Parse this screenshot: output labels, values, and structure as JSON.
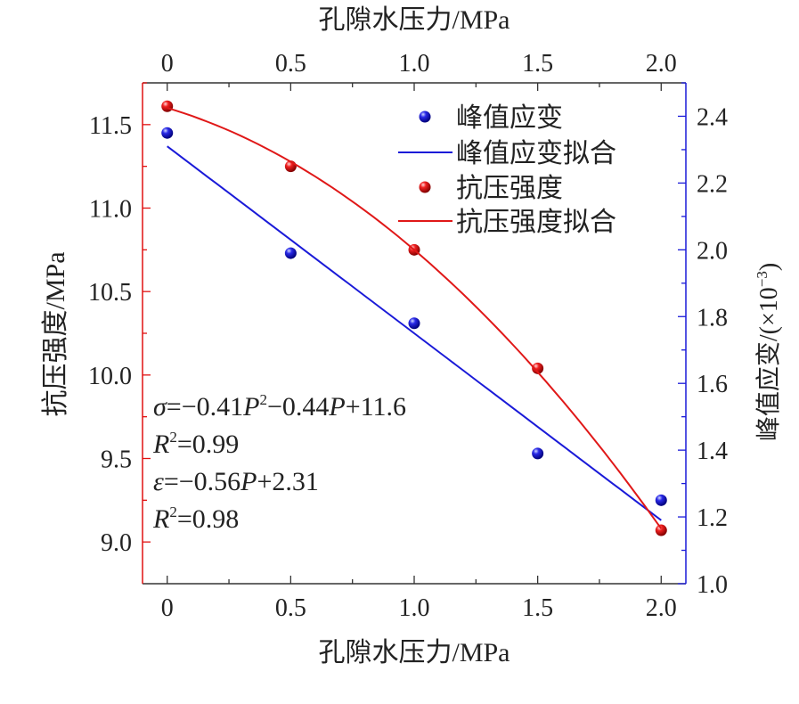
{
  "chart_data": {
    "type": "scatter",
    "title": "",
    "xlabel": "孔隙水压力/MPa",
    "xlabel_top": "孔隙水压力/MPa",
    "ylabel_left": "抗压强度/MPa",
    "ylabel_right": "峰值应变/(×10",
    "ylabel_right_exp": "−3",
    "ylabel_right_close": ")",
    "xlim": [
      -0.1,
      2.1
    ],
    "ylim_left": [
      8.75,
      11.75
    ],
    "ylim_right": [
      1.0,
      2.5
    ],
    "x_ticks": [
      "0",
      "0.5",
      "1.0",
      "1.5",
      "2.0"
    ],
    "x_tick_values": [
      0,
      0.5,
      1.0,
      1.5,
      2.0
    ],
    "y_left_ticks": [
      "9.0",
      "9.5",
      "10.0",
      "10.5",
      "11.0",
      "11.5"
    ],
    "y_left_tick_values": [
      9.0,
      9.5,
      10.0,
      10.5,
      11.0,
      11.5
    ],
    "y_right_ticks": [
      "1.0",
      "1.2",
      "1.4",
      "1.6",
      "1.8",
      "2.0",
      "2.2",
      "2.4"
    ],
    "y_right_tick_values": [
      1.0,
      1.2,
      1.4,
      1.6,
      1.8,
      2.0,
      2.2,
      2.4
    ],
    "x": [
      0,
      0.5,
      1.0,
      1.5,
      2.0
    ],
    "series": [
      {
        "name": "峰值应变",
        "axis": "right",
        "kind": "points",
        "color": "#1010d0",
        "values": [
          2.35,
          1.99,
          1.78,
          1.39,
          1.25
        ]
      },
      {
        "name": "峰值应变拟合",
        "axis": "right",
        "kind": "fit",
        "color": "#1a1ad8",
        "coeffs": [
          0,
          -0.56,
          2.31
        ]
      },
      {
        "name": "抗压强度",
        "axis": "left",
        "kind": "points",
        "color": "#e01010",
        "values": [
          11.61,
          11.25,
          10.75,
          10.04,
          9.07
        ]
      },
      {
        "name": "抗压强度拟合",
        "axis": "left",
        "kind": "fit",
        "color": "#e01818",
        "coeffs": [
          -0.41,
          -0.44,
          11.6
        ]
      }
    ],
    "legend_position": "top-right",
    "annotations": {
      "sigma_fit": {
        "sym": "σ",
        "eq": "=−0.41",
        "p1": "P",
        "sup": "2",
        "rest": "−0.44",
        "p2": "P",
        "end": "+11.6"
      },
      "sigma_r2": {
        "r": "R",
        "sup": "2",
        "val": "=0.99"
      },
      "eps_fit": {
        "sym": "ε",
        "eq": "=−0.56",
        "p": "P",
        "end": "+2.31"
      },
      "eps_r2": {
        "r": "R",
        "sup": "2",
        "val": "=0.98"
      }
    },
    "colors": {
      "left_axis": "#e01010",
      "right_axis": "#1a1ad8",
      "frame": "#333333"
    }
  }
}
